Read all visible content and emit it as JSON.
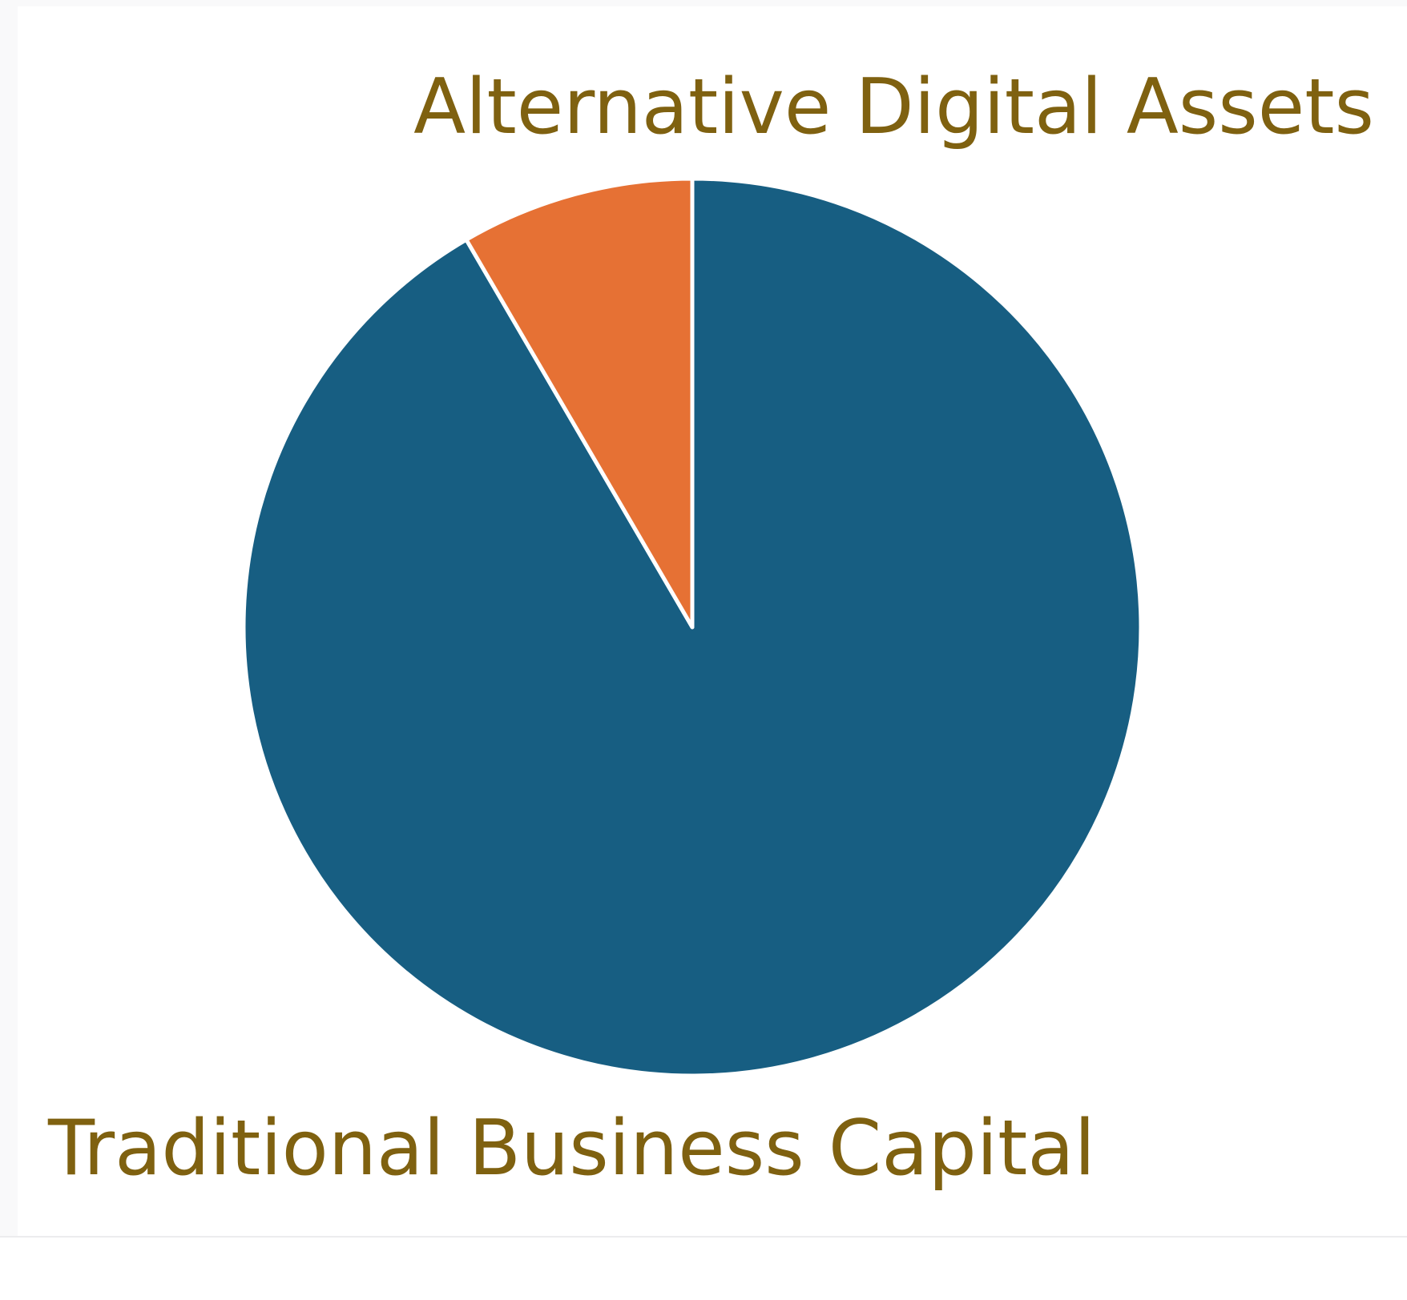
{
  "chart_data": {
    "type": "pie",
    "title": "",
    "start_angle_deg": 0,
    "direction": "clockwise",
    "legend": "none",
    "series": [
      {
        "name": "Traditional Business Capital",
        "value": 91.6,
        "color": "#175e82"
      },
      {
        "name": "Alternative Digital Assets",
        "value": 8.4,
        "color": "#e67134"
      }
    ],
    "labels": [
      {
        "text": "Alternative Digital Assets",
        "placement": "top-right"
      },
      {
        "text": "Traditional Business Capital",
        "placement": "bottom-left"
      }
    ]
  }
}
